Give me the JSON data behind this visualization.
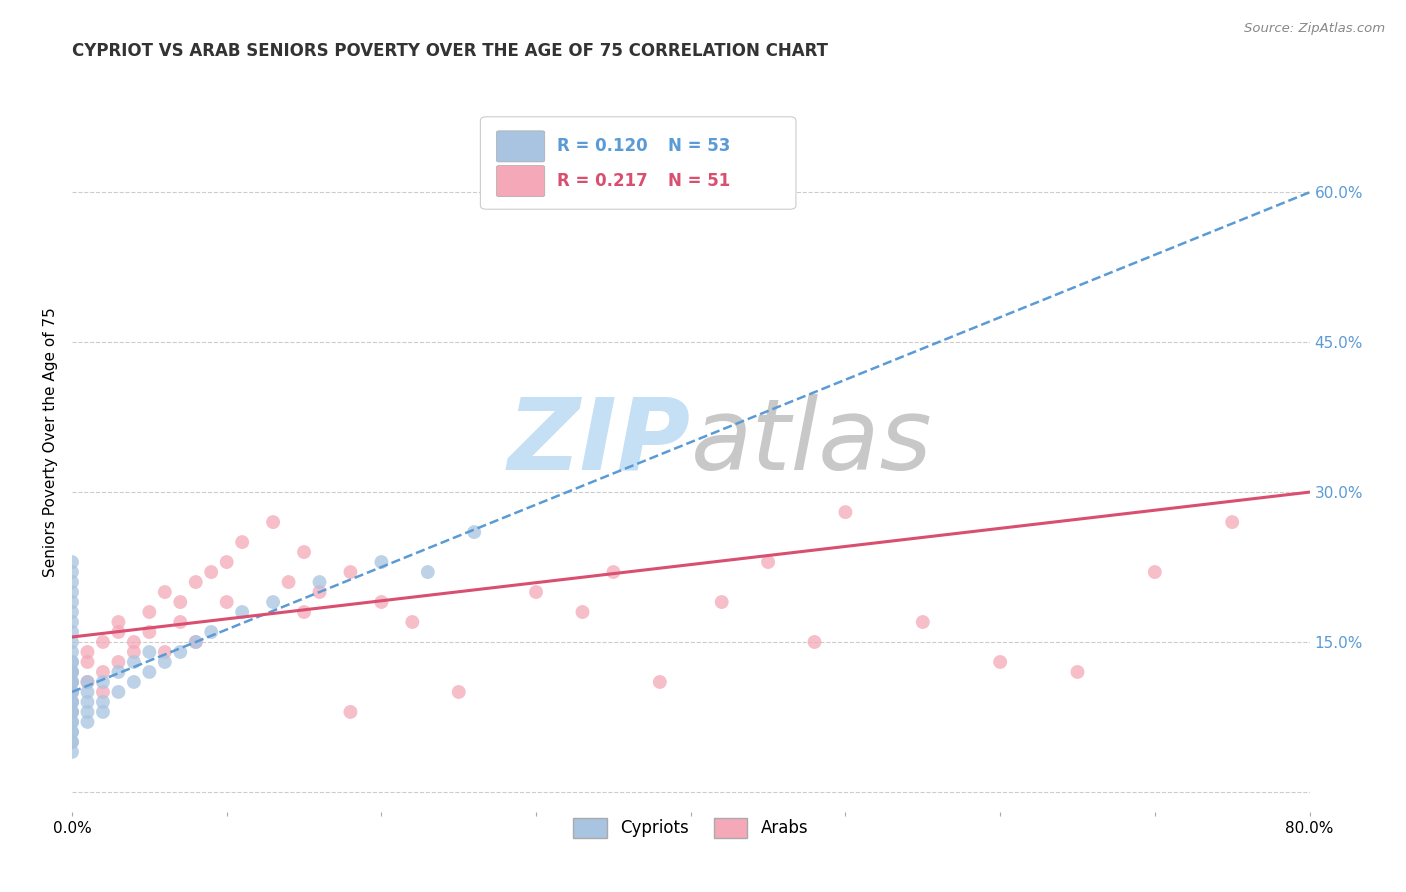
{
  "title": "CYPRIOT VS ARAB SENIORS POVERTY OVER THE AGE OF 75 CORRELATION CHART",
  "source": "Source: ZipAtlas.com",
  "ylabel": "Seniors Poverty Over the Age of 75",
  "xlim": [
    0.0,
    0.8
  ],
  "ylim": [
    -0.02,
    0.72
  ],
  "right_yticks": [
    0.0,
    0.15,
    0.3,
    0.45,
    0.6
  ],
  "right_yticklabels": [
    "",
    "15.0%",
    "30.0%",
    "45.0%",
    "60.0%"
  ],
  "legend_blue_r": "R = 0.120",
  "legend_blue_n": "N = 53",
  "legend_pink_r": "R = 0.217",
  "legend_pink_n": "N = 51",
  "blue_color": "#a8c4e0",
  "pink_color": "#f4a8b8",
  "blue_line_color": "#5b9bd5",
  "pink_line_color": "#d94f70",
  "grid_color": "#cccccc",
  "background_color": "#ffffff",
  "watermark_zip_color": "#c5dff5",
  "watermark_atlas_color": "#c8c8c8",
  "blue_scatter_x": [
    0.0,
    0.0,
    0.0,
    0.0,
    0.0,
    0.0,
    0.0,
    0.0,
    0.0,
    0.0,
    0.0,
    0.0,
    0.0,
    0.0,
    0.0,
    0.0,
    0.0,
    0.0,
    0.0,
    0.0,
    0.0,
    0.0,
    0.0,
    0.0,
    0.0,
    0.0,
    0.0,
    0.0,
    0.0,
    0.01,
    0.01,
    0.01,
    0.01,
    0.01,
    0.02,
    0.02,
    0.02,
    0.03,
    0.03,
    0.04,
    0.04,
    0.05,
    0.05,
    0.06,
    0.07,
    0.08,
    0.09,
    0.11,
    0.13,
    0.16,
    0.2,
    0.23,
    0.26
  ],
  "blue_scatter_y": [
    0.04,
    0.05,
    0.06,
    0.07,
    0.08,
    0.09,
    0.1,
    0.11,
    0.12,
    0.13,
    0.14,
    0.15,
    0.16,
    0.17,
    0.18,
    0.19,
    0.2,
    0.21,
    0.22,
    0.05,
    0.06,
    0.07,
    0.08,
    0.09,
    0.1,
    0.11,
    0.12,
    0.13,
    0.23,
    0.08,
    0.1,
    0.07,
    0.09,
    0.11,
    0.09,
    0.11,
    0.08,
    0.1,
    0.12,
    0.11,
    0.13,
    0.12,
    0.14,
    0.13,
    0.14,
    0.15,
    0.16,
    0.18,
    0.19,
    0.21,
    0.23,
    0.22,
    0.26
  ],
  "pink_scatter_x": [
    0.0,
    0.0,
    0.0,
    0.0,
    0.0,
    0.01,
    0.01,
    0.01,
    0.02,
    0.02,
    0.02,
    0.03,
    0.03,
    0.03,
    0.04,
    0.04,
    0.05,
    0.05,
    0.06,
    0.06,
    0.07,
    0.07,
    0.08,
    0.08,
    0.09,
    0.1,
    0.1,
    0.11,
    0.13,
    0.14,
    0.15,
    0.15,
    0.16,
    0.18,
    0.18,
    0.2,
    0.22,
    0.25,
    0.3,
    0.33,
    0.35,
    0.38,
    0.42,
    0.45,
    0.48,
    0.5,
    0.55,
    0.6,
    0.65,
    0.7,
    0.75
  ],
  "pink_scatter_y": [
    0.1,
    0.11,
    0.09,
    0.08,
    0.12,
    0.13,
    0.14,
    0.11,
    0.15,
    0.1,
    0.12,
    0.16,
    0.13,
    0.17,
    0.14,
    0.15,
    0.16,
    0.18,
    0.14,
    0.2,
    0.19,
    0.17,
    0.21,
    0.15,
    0.22,
    0.23,
    0.19,
    0.25,
    0.27,
    0.21,
    0.18,
    0.24,
    0.2,
    0.08,
    0.22,
    0.19,
    0.17,
    0.1,
    0.2,
    0.18,
    0.22,
    0.11,
    0.19,
    0.23,
    0.15,
    0.28,
    0.17,
    0.13,
    0.12,
    0.22,
    0.27
  ],
  "blue_trend_x": [
    0.0,
    0.8
  ],
  "blue_trend_y": [
    0.1,
    0.6
  ],
  "pink_trend_x": [
    0.0,
    0.8
  ],
  "pink_trend_y": [
    0.155,
    0.3
  ],
  "title_fontsize": 12,
  "axis_label_fontsize": 11,
  "tick_fontsize": 11,
  "legend_fontsize": 12,
  "scatter_size": 100
}
